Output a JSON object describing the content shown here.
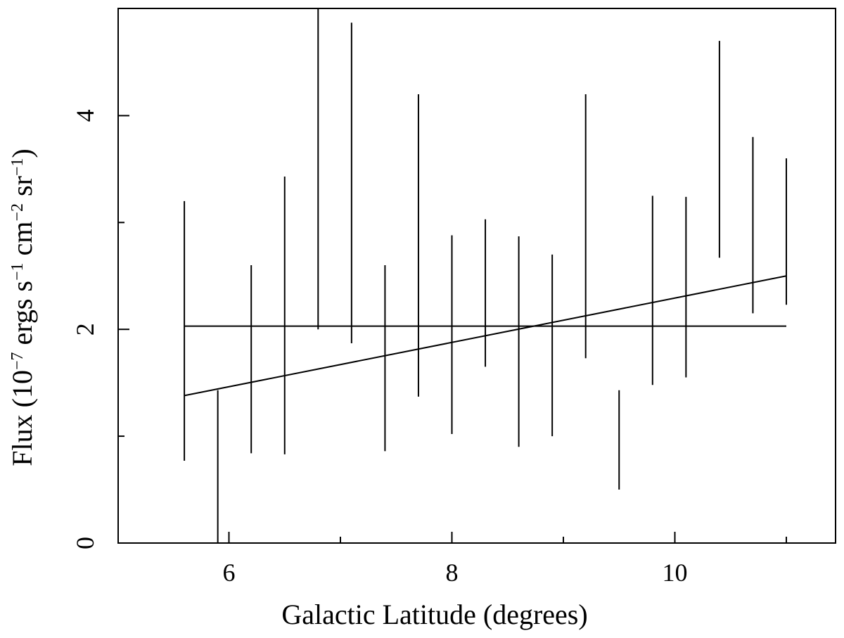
{
  "chart_data": {
    "type": "scatter",
    "title": "",
    "xlabel": {
      "text": "Galactic Latitude (degrees)"
    },
    "ylabel": {
      "parts": [
        {
          "text": "Flux (10",
          "sup": false
        },
        {
          "text": "−7",
          "sup": true
        },
        {
          "text": " ergs s",
          "sup": false
        },
        {
          "text": "−1",
          "sup": true
        },
        {
          "text": " cm",
          "sup": false
        },
        {
          "text": "−2",
          "sup": true
        },
        {
          "text": " sr",
          "sup": false
        },
        {
          "text": "−1",
          "sup": true
        },
        {
          "text": ")",
          "sup": false
        }
      ]
    },
    "xlim": [
      5.0,
      11.45
    ],
    "ylim": [
      0,
      5
    ],
    "xticks_major": [
      6,
      8,
      10
    ],
    "xticks_minor": [
      7,
      9,
      11
    ],
    "xtick_labels": [
      "6",
      "8",
      "10"
    ],
    "yticks_major": [
      0,
      2,
      4
    ],
    "yticks_minor": [
      1,
      3
    ],
    "ytick_labels": [
      "0",
      "2",
      "4"
    ],
    "grid": false,
    "series": [
      {
        "kind": "errorbars",
        "points": [
          {
            "x": 5.6,
            "ylow": 0.77,
            "yhigh": 3.2
          },
          {
            "x": 5.9,
            "ylow": 0.0,
            "yhigh": 1.43
          },
          {
            "x": 6.2,
            "ylow": 0.84,
            "yhigh": 2.6
          },
          {
            "x": 6.5,
            "ylow": 0.83,
            "yhigh": 3.43
          },
          {
            "x": 6.8,
            "ylow": 2.0,
            "yhigh": 5.0
          },
          {
            "x": 7.1,
            "ylow": 1.87,
            "yhigh": 4.87
          },
          {
            "x": 7.4,
            "ylow": 0.86,
            "yhigh": 2.6
          },
          {
            "x": 7.7,
            "ylow": 1.37,
            "yhigh": 4.2
          },
          {
            "x": 8.0,
            "ylow": 1.02,
            "yhigh": 2.88
          },
          {
            "x": 8.3,
            "ylow": 1.65,
            "yhigh": 3.03
          },
          {
            "x": 8.6,
            "ylow": 0.9,
            "yhigh": 2.87
          },
          {
            "x": 8.9,
            "ylow": 1.0,
            "yhigh": 2.7
          },
          {
            "x": 9.2,
            "ylow": 1.73,
            "yhigh": 4.2
          },
          {
            "x": 9.5,
            "ylow": 0.5,
            "yhigh": 1.43
          },
          {
            "x": 9.8,
            "ylow": 1.48,
            "yhigh": 3.25
          },
          {
            "x": 10.1,
            "ylow": 1.55,
            "yhigh": 3.24
          },
          {
            "x": 10.4,
            "ylow": 2.67,
            "yhigh": 4.7
          },
          {
            "x": 10.7,
            "ylow": 2.15,
            "yhigh": 3.8
          },
          {
            "x": 11.0,
            "ylow": 2.23,
            "yhigh": 3.6
          }
        ]
      },
      {
        "kind": "line",
        "x": [
          5.6,
          11.0
        ],
        "y": [
          2.03,
          2.03
        ]
      },
      {
        "kind": "line",
        "x": [
          5.6,
          11.0
        ],
        "y": [
          1.38,
          2.5
        ]
      }
    ]
  }
}
